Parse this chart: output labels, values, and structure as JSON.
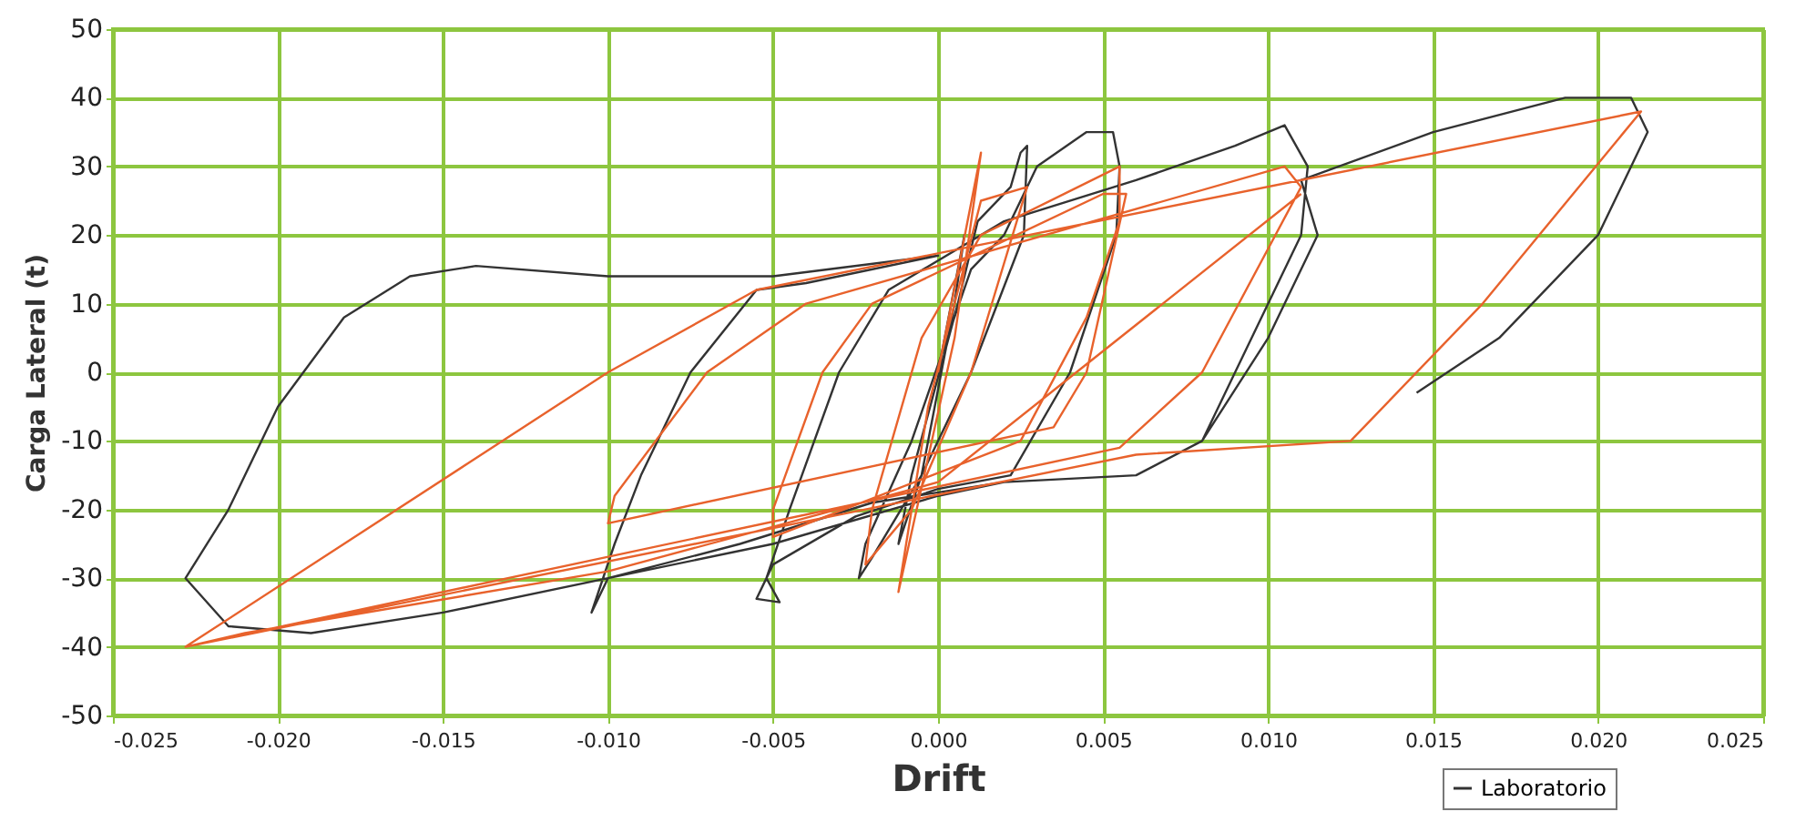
{
  "chart_data": {
    "type": "line",
    "xlabel": "Drift",
    "ylabel": "Carga Lateral (t)",
    "xlim": [
      -0.025,
      0.025
    ],
    "xticks": [
      {
        "value": -0.025,
        "label": "-0.025"
      },
      {
        "value": -0.02,
        "label": "-0.020"
      },
      {
        "value": -0.015,
        "label": "-0.015"
      },
      {
        "value": -0.01,
        "label": "-0.010"
      },
      {
        "value": -0.005,
        "label": "-0.005"
      },
      {
        "value": 0,
        "label": "0.000"
      },
      {
        "value": 0.005,
        "label": "0.005"
      },
      {
        "value": 0.01,
        "label": "0.010"
      },
      {
        "value": 0.015,
        "label": "0.015"
      },
      {
        "value": 0.02,
        "label": "0.020"
      },
      {
        "value": 0.025,
        "label": "0.025"
      }
    ],
    "ylim": [
      -50,
      50
    ],
    "yticks": [
      -50,
      -40,
      -30,
      -20,
      -10,
      0,
      10,
      20,
      30,
      40,
      50
    ],
    "grid": true,
    "legend": "bottom right",
    "marker": "none",
    "line_style": "solid",
    "series": [
      {
        "name": "Laboratorio",
        "color": "#333333",
        "x": [
          0,
          0.0008,
          0.0005,
          -0.0005,
          -0.0012,
          -0.0008,
          0.0006,
          0.0012,
          0.0022,
          0.0025,
          0.0027,
          0.0026,
          0.001,
          -0.0005,
          -0.002,
          -0.0024,
          -0.0022,
          -0.0008,
          0.001,
          0.002,
          0.003,
          0.0045,
          0.0053,
          0.0055,
          0.0054,
          0.004,
          0.0022,
          0,
          -0.0025,
          -0.005,
          -0.0055,
          -0.0048,
          -0.0052,
          -0.0045,
          -0.003,
          -0.0015,
          0.002,
          0.006,
          0.009,
          0.0105,
          0.0112,
          0.011,
          0.009,
          0.008,
          0.006,
          0.002,
          -0.002,
          -0.006,
          -0.01,
          -0.0105,
          -0.0098,
          -0.009,
          -0.0075,
          -0.0055,
          -0.004,
          0,
          -0.005,
          -0.01,
          -0.014,
          -0.016,
          -0.018,
          -0.02,
          -0.0215,
          -0.0228,
          -0.0215,
          -0.019,
          -0.015,
          -0.01,
          -0.005,
          0,
          0.002,
          0.006,
          0.008,
          0.01,
          0.0115,
          0.011,
          0.015,
          0.019,
          0.021,
          0.0215,
          0.02,
          0.017,
          0.0145
        ],
        "values": [
          0,
          20,
          10,
          -15,
          -25,
          -15,
          10,
          22,
          27,
          32,
          33,
          20,
          0,
          -15,
          -27,
          -30,
          -25,
          -10,
          15,
          20,
          30,
          35,
          35,
          30,
          20,
          0,
          -15,
          -17,
          -21,
          -28,
          -33,
          -33.5,
          -30,
          -20,
          0,
          12,
          22,
          28,
          33,
          36,
          30,
          20,
          0,
          -10,
          -15,
          -16,
          -19,
          -25,
          -30,
          -35,
          -25,
          -15,
          0,
          12,
          13,
          17,
          14,
          14,
          15.5,
          14,
          8,
          -5,
          -20,
          -30,
          -37,
          -38,
          -35,
          -30,
          -25,
          -18,
          -16,
          -15,
          -10,
          5,
          20,
          28,
          35,
          40,
          40,
          35,
          20,
          5,
          -3
        ]
      },
      {
        "color": "#e8622c",
        "x": [
          0,
          0.0013,
          0.0005,
          -0.0012,
          -0.0003,
          0.0013,
          0.0027,
          0.001,
          -0.0008,
          -0.0022,
          -0.002,
          -0.0005,
          0.0013,
          0.0055,
          0.0055,
          0.0045,
          0.0025,
          -0.005,
          -0.005,
          -0.0035,
          -0.002,
          0.005,
          0.0057,
          0.0045,
          0.0035,
          -0.01,
          -0.0098,
          -0.007,
          -0.004,
          0.0105,
          0.011,
          0.008,
          0.0055,
          -0.0228,
          -0.01,
          -0.0055,
          0.0213,
          0.0165,
          0.0125,
          0.006,
          -0.0228,
          -0.021,
          -0.01,
          0,
          0.011
        ],
        "values": [
          0,
          32,
          5,
          -32,
          -5,
          25,
          27,
          0,
          -20,
          -28,
          -20,
          5,
          20,
          30,
          22,
          8,
          -10,
          -24,
          -20,
          0,
          10,
          26,
          26,
          0,
          -8,
          -22,
          -18,
          0,
          10,
          30,
          27,
          0,
          -11,
          -40,
          0,
          12,
          38,
          10,
          -10,
          -12,
          -40,
          -38,
          -29,
          -16,
          26
        ]
      }
    ]
  }
}
